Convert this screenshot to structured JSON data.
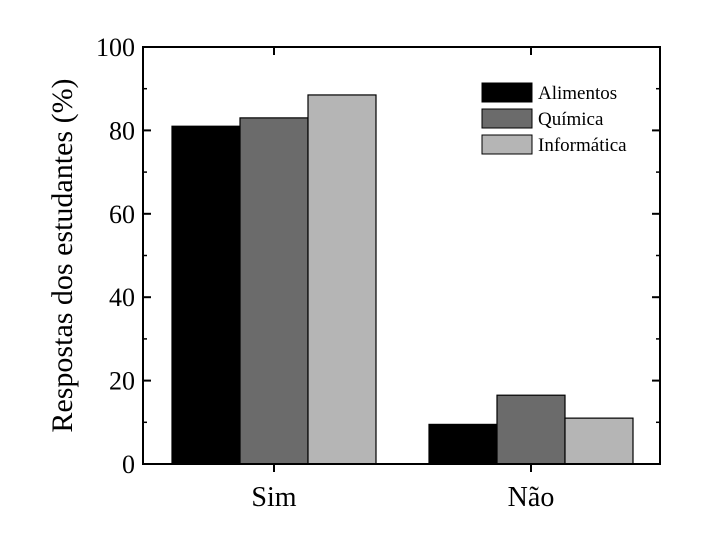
{
  "chart_data": {
    "type": "bar",
    "title": "",
    "xlabel": "",
    "ylabel": "Respostas dos estudantes (%)",
    "categories": [
      "Sim",
      "Não"
    ],
    "series": [
      {
        "name": "Alimentos",
        "values": [
          81,
          9.5
        ],
        "color": "#000000"
      },
      {
        "name": "Química",
        "values": [
          83,
          16.5
        ],
        "color": "#6b6b6b"
      },
      {
        "name": "Informática",
        "values": [
          88.5,
          11
        ],
        "color": "#b5b5b5"
      }
    ],
    "ylim": [
      0,
      100
    ],
    "yticks": [
      0,
      20,
      40,
      60,
      80,
      100
    ],
    "grid": false,
    "legend": "top-right"
  }
}
